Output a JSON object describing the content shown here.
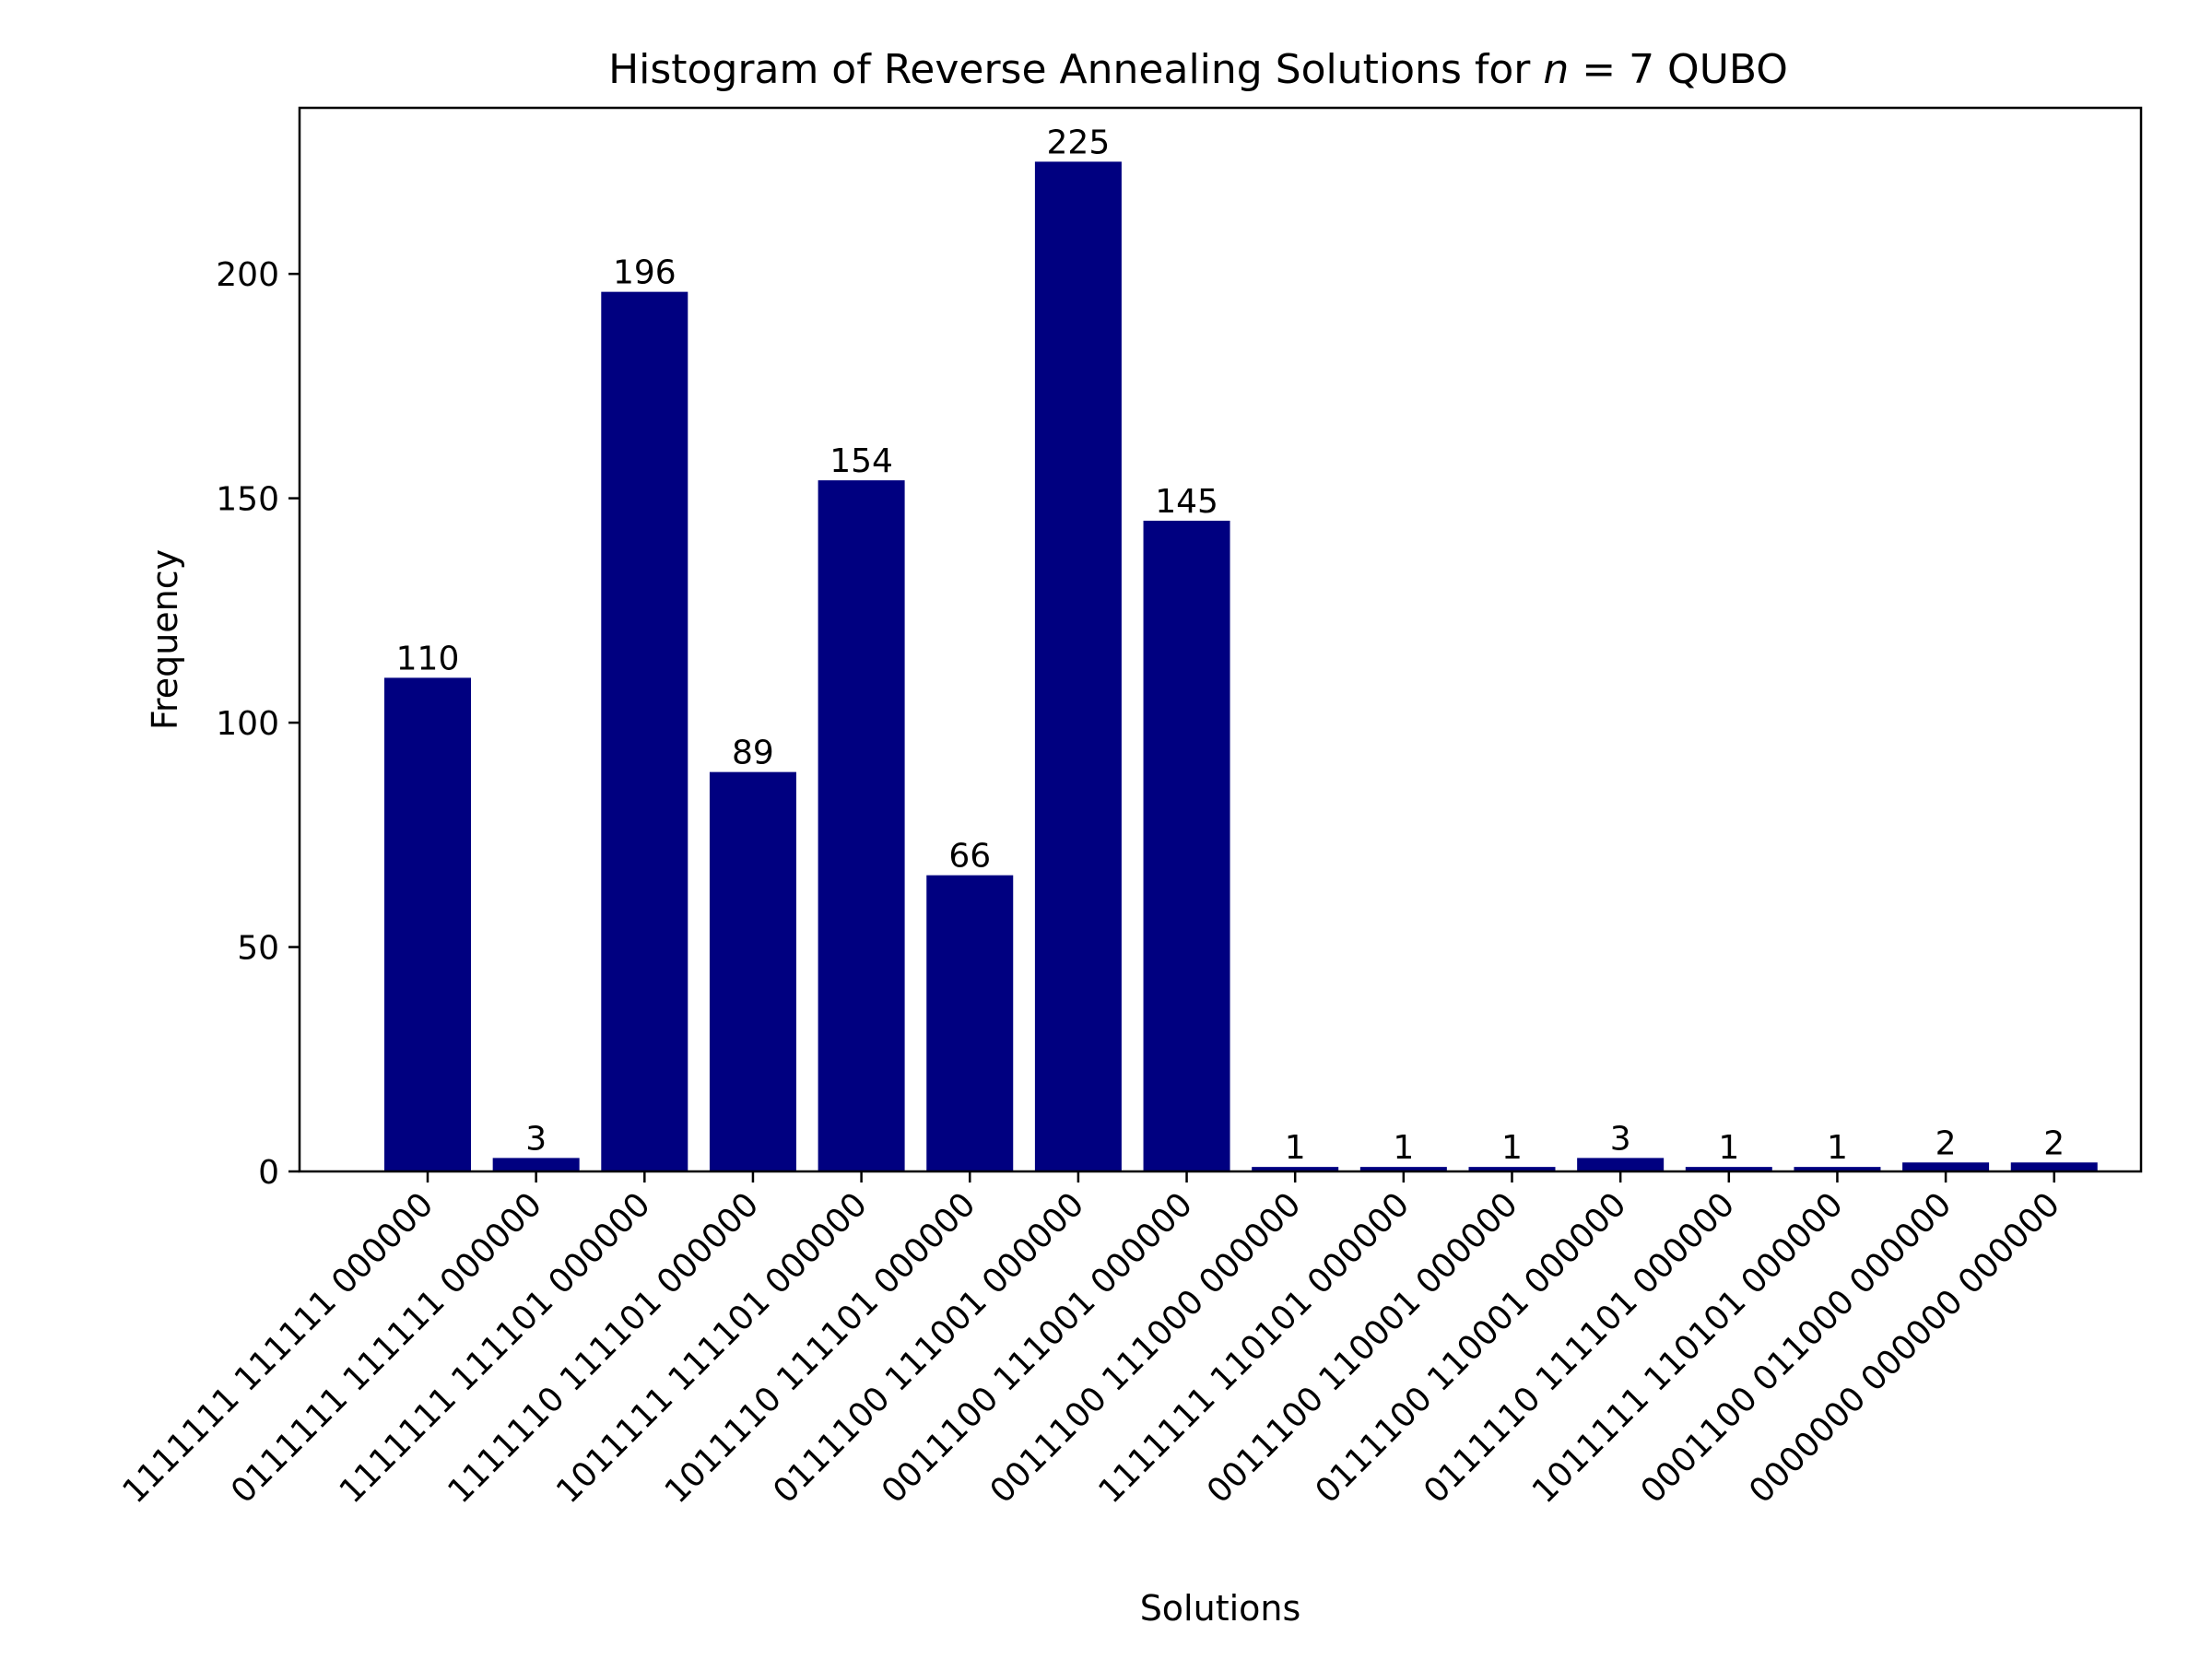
{
  "chart_data": {
    "type": "bar",
    "title_prefix": "Histogram of Reverse Annealing Solutions for ",
    "title_math": "n",
    "title_suffix": " = 7 QUBO",
    "xlabel": "Solutions",
    "ylabel": "Frequency",
    "ylim": [
      0,
      237
    ],
    "yticks": [
      0,
      50,
      100,
      150,
      200
    ],
    "bar_color": "#000080",
    "grid": false,
    "legend": "none",
    "categories": [
      "1111111 111111 000000",
      "0111111 111111 000000",
      "1111111 111101 000000",
      "1111110 111101 000000",
      "1011111 111101 000000",
      "1011110 111101 000000",
      "0111100 111001 000000",
      "0011100 111001 000000",
      "0011100 111000 000000",
      "1111111 110101 000000",
      "0011100 110001 000000",
      "0111100 110001 000000",
      "0111110 111101 000000",
      "1011111 110101 000000",
      "0001100 011000 000000",
      "0000000 000000 000000"
    ],
    "values": [
      110,
      3,
      196,
      89,
      154,
      66,
      225,
      145,
      1,
      1,
      1,
      3,
      1,
      1,
      2,
      2
    ]
  }
}
